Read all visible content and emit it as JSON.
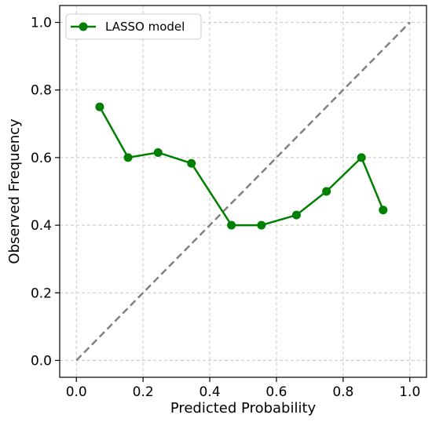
{
  "chart_data": {
    "type": "line",
    "title": "",
    "xlabel": "Predicted Probability",
    "ylabel": "Observed Frequency",
    "xlim": [
      -0.05,
      1.05
    ],
    "ylim": [
      -0.05,
      1.05
    ],
    "xticks": [
      0.0,
      0.2,
      0.4,
      0.6,
      0.8,
      1.0
    ],
    "yticks": [
      0.0,
      0.2,
      0.4,
      0.6,
      0.8,
      1.0
    ],
    "xtick_labels": [
      "0.0",
      "0.2",
      "0.4",
      "0.6",
      "0.8",
      "1.0"
    ],
    "ytick_labels": [
      "0.0",
      "0.2",
      "0.4",
      "0.6",
      "0.8",
      "1.0"
    ],
    "grid": true,
    "legend_position": "top-left",
    "reference_line": {
      "x": [
        0.0,
        1.0
      ],
      "y": [
        0.0,
        1.0
      ],
      "style": "dashed",
      "color": "#808080"
    },
    "series": [
      {
        "name": "LASSO model",
        "color": "#008000",
        "marker": "circle",
        "x": [
          0.07,
          0.155,
          0.245,
          0.345,
          0.465,
          0.555,
          0.66,
          0.75,
          0.855,
          0.92
        ],
        "y": [
          0.75,
          0.6,
          0.615,
          0.583,
          0.4,
          0.4,
          0.43,
          0.5,
          0.6,
          0.445
        ]
      }
    ]
  }
}
